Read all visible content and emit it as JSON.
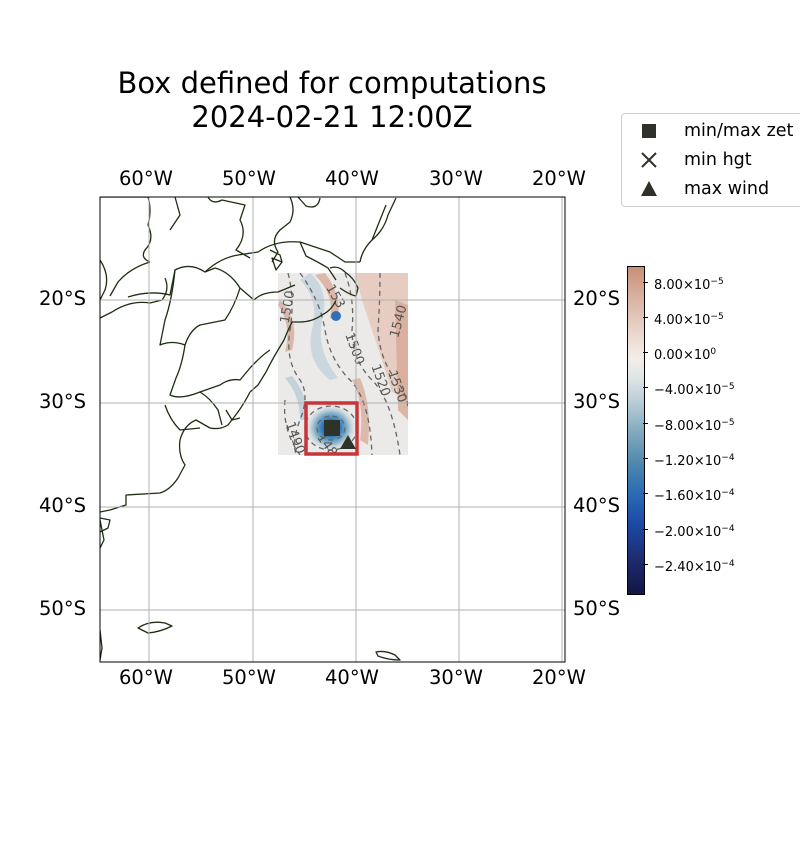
{
  "title": {
    "line1": "Box defined for computations",
    "line2": "2024-02-21 12:00Z"
  },
  "map": {
    "lon_ticks": [
      "60°W",
      "50°W",
      "40°W",
      "30°W",
      "20°W"
    ],
    "lat_ticks": [
      "20°S",
      "30°S",
      "40°S",
      "50°S"
    ],
    "extent": {
      "lon": [
        -65,
        -20
      ],
      "lat": [
        -55,
        -10
      ]
    },
    "box": {
      "lon": [
        -45,
        -40
      ],
      "lat": [
        -35,
        -30
      ],
      "color": "#c8343a"
    },
    "data_domain": {
      "lon": [
        -47.5,
        -35
      ],
      "lat": [
        -35,
        -17.5
      ]
    },
    "markers": {
      "min_max_zeta": {
        "lon": -42.5,
        "lat": -32.5
      },
      "max_wind": {
        "lon": -41,
        "lat": -34
      }
    },
    "contour_labels": [
      "1500",
      "1540",
      "1520",
      "1530",
      "1490",
      "1480",
      "153",
      "1500"
    ]
  },
  "legend": {
    "items": [
      {
        "label": "min/max zet",
        "icon": "square-marker"
      },
      {
        "label": "min hgt",
        "icon": "x-marker"
      },
      {
        "label": "max wind",
        "icon": "triangle-marker"
      }
    ]
  },
  "colorbar": {
    "labels": [
      {
        "mantissa": "8.00",
        "exp": "−5"
      },
      {
        "mantissa": "4.00",
        "exp": "−5"
      },
      {
        "mantissa": "0.00",
        "exp": "0"
      },
      {
        "mantissa": "−4.00",
        "exp": "−5"
      },
      {
        "mantissa": "−8.00",
        "exp": "−5"
      },
      {
        "mantissa": "−1.20",
        "exp": "−4"
      },
      {
        "mantissa": "−1.60",
        "exp": "−4"
      },
      {
        "mantissa": "−2.00",
        "exp": "−4"
      },
      {
        "mantissa": "−2.40",
        "exp": "−4"
      }
    ],
    "base": "10",
    "colors": {
      "top": "#c98f78",
      "middle": "#f2eeea",
      "bottom": "#121642"
    }
  }
}
